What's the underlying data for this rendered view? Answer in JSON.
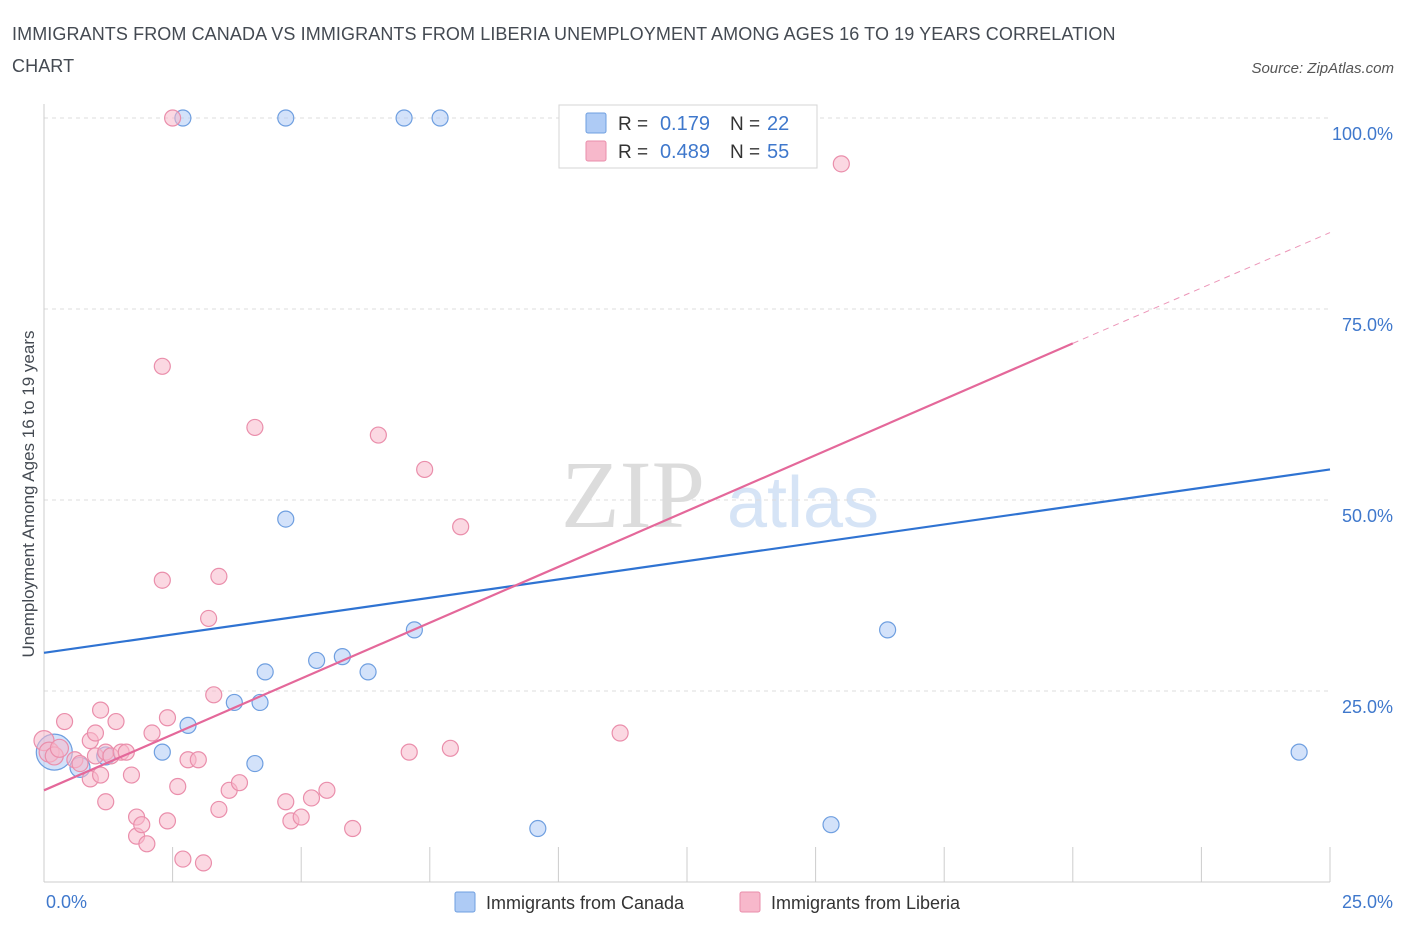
{
  "title": "IMMIGRANTS FROM CANADA VS IMMIGRANTS FROM LIBERIA UNEMPLOYMENT AMONG AGES 16 TO 19 YEARS CORRELATION CHART",
  "source": "Source: ZipAtlas.com",
  "watermark": {
    "zip": "ZIP",
    "atlas": "atlas"
  },
  "colors": {
    "canada_fill": "#aecbf5",
    "canada_stroke": "#6f9fe0",
    "canada_line": "#2f73d2",
    "liberia_fill": "#f7b8cb",
    "liberia_stroke": "#ea8eab",
    "liberia_line": "#e4689a",
    "value_text": "#3f78cc"
  },
  "legend": {
    "rows": [
      {
        "r_label": "R =",
        "r_value": "0.179",
        "n_label": "N =",
        "n_value": "22"
      },
      {
        "r_label": "R =",
        "r_value": "0.489",
        "n_label": "N =",
        "n_value": "55"
      }
    ]
  },
  "bottom_legend": [
    "Immigrants from Canada",
    "Immigrants from Liberia"
  ],
  "chart_data": {
    "type": "scatter",
    "xlabel": "",
    "ylabel": "Unemployment Among Ages 16 to 19 years",
    "xlim": [
      0,
      25
    ],
    "ylim": [
      0,
      100
    ],
    "x_tick_labels": [
      "0.0%",
      "25.0%"
    ],
    "y_tick_labels": [
      "25.0%",
      "50.0%",
      "75.0%",
      "100.0%"
    ],
    "y_ticks": [
      25,
      50,
      75,
      100
    ],
    "grid": true,
    "series": [
      {
        "name": "Immigrants from Canada",
        "r": 0.179,
        "n": 22,
        "trend": {
          "x0": 0,
          "y0": 30.0,
          "x1": 25,
          "y1": 54.0
        },
        "points": [
          [
            0.2,
            17.0,
            18
          ],
          [
            0.7,
            15.0,
            10
          ],
          [
            1.2,
            16.5,
            9
          ],
          [
            2.3,
            17.0,
            8
          ],
          [
            2.8,
            20.5,
            8
          ],
          [
            2.7,
            100,
            8
          ],
          [
            7.0,
            100,
            8
          ],
          [
            7.7,
            100,
            8
          ],
          [
            4.7,
            100,
            8
          ],
          [
            4.7,
            47.5,
            8
          ],
          [
            3.7,
            23.5,
            8
          ],
          [
            4.3,
            27.5,
            8
          ],
          [
            4.2,
            23.5,
            8
          ],
          [
            5.3,
            29.0,
            8
          ],
          [
            5.8,
            29.5,
            8
          ],
          [
            6.3,
            27.5,
            8
          ],
          [
            7.2,
            33.0,
            8
          ],
          [
            4.1,
            15.5,
            8
          ],
          [
            9.6,
            7.0,
            8
          ],
          [
            15.3,
            7.5,
            8
          ],
          [
            16.4,
            33.0,
            8
          ],
          [
            24.4,
            17.0,
            8
          ]
        ]
      },
      {
        "name": "Immigrants from Liberia",
        "r": 0.489,
        "n": 55,
        "trend": {
          "x0": 0,
          "y0": 12.0,
          "x1": 20,
          "y1": 70.5,
          "dash_to_x": 25,
          "dash_to_y": 85.0
        },
        "points": [
          [
            0.0,
            18.5,
            10
          ],
          [
            0.1,
            17.0,
            10
          ],
          [
            0.2,
            16.5,
            9
          ],
          [
            0.3,
            17.5,
            9
          ],
          [
            0.4,
            21.0,
            8
          ],
          [
            0.6,
            16.0,
            8
          ],
          [
            0.7,
            15.5,
            8
          ],
          [
            0.9,
            18.5,
            8
          ],
          [
            1.0,
            16.5,
            8
          ],
          [
            0.9,
            13.5,
            8
          ],
          [
            1.0,
            19.5,
            8
          ],
          [
            1.1,
            14.0,
            8
          ],
          [
            1.2,
            17.0,
            8
          ],
          [
            1.3,
            16.5,
            8
          ],
          [
            1.1,
            22.5,
            8
          ],
          [
            1.4,
            21.0,
            8
          ],
          [
            1.5,
            17.0,
            8
          ],
          [
            1.2,
            10.5,
            8
          ],
          [
            1.6,
            17.0,
            8
          ],
          [
            1.7,
            14.0,
            8
          ],
          [
            1.8,
            8.5,
            8
          ],
          [
            1.8,
            6.0,
            8
          ],
          [
            1.9,
            7.5,
            8
          ],
          [
            2.0,
            5.0,
            8
          ],
          [
            2.1,
            19.5,
            8
          ],
          [
            2.4,
            21.5,
            8
          ],
          [
            2.4,
            8.0,
            8
          ],
          [
            2.6,
            12.5,
            8
          ],
          [
            2.7,
            3.0,
            8
          ],
          [
            2.8,
            16.0,
            8
          ],
          [
            3.0,
            16.0,
            8
          ],
          [
            3.1,
            2.5,
            8
          ],
          [
            3.2,
            34.5,
            8
          ],
          [
            3.3,
            24.5,
            8
          ],
          [
            3.4,
            40.0,
            8
          ],
          [
            3.4,
            9.5,
            8
          ],
          [
            3.6,
            12.0,
            8
          ],
          [
            3.8,
            13.0,
            8
          ],
          [
            2.3,
            39.5,
            8
          ],
          [
            2.3,
            67.5,
            8
          ],
          [
            4.1,
            59.5,
            8
          ],
          [
            4.7,
            10.5,
            8
          ],
          [
            4.8,
            8.0,
            8
          ],
          [
            5.0,
            8.5,
            8
          ],
          [
            5.2,
            11.0,
            8
          ],
          [
            5.5,
            12.0,
            8
          ],
          [
            6.0,
            7.0,
            8
          ],
          [
            6.5,
            58.5,
            8
          ],
          [
            7.1,
            17.0,
            8
          ],
          [
            7.4,
            54.0,
            8
          ],
          [
            7.9,
            17.5,
            8
          ],
          [
            8.1,
            46.5,
            8
          ],
          [
            11.2,
            19.5,
            8
          ],
          [
            15.5,
            94.0,
            8
          ],
          [
            2.5,
            100,
            8
          ]
        ]
      }
    ]
  }
}
